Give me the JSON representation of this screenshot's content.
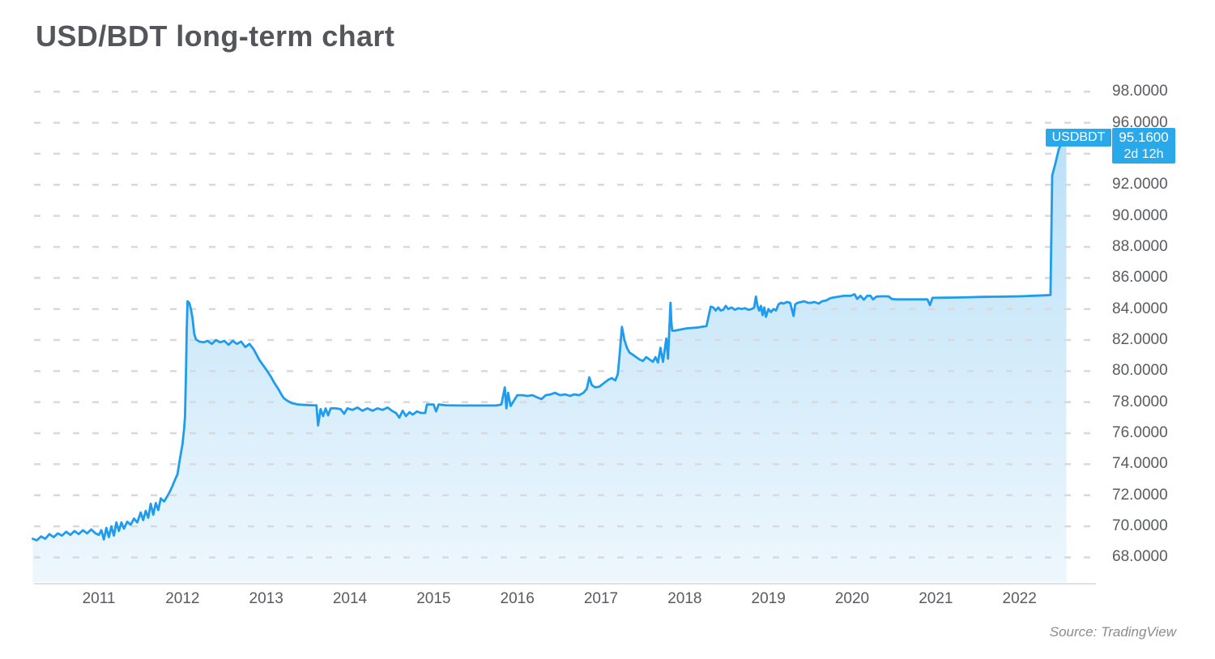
{
  "header": {
    "title": "USD/BDT long-term chart"
  },
  "footer": {
    "source": "Source: TradingView"
  },
  "price_label": {
    "symbol": "USDBDT",
    "price": "95.1600",
    "countdown": "2d 12h"
  },
  "chart_data": {
    "type": "area",
    "title": "USD/BDT long-term chart",
    "series_name": "USDBDT",
    "xlabel": "",
    "ylabel": "",
    "x_tick_labels": [
      "2011",
      "2012",
      "2013",
      "2014",
      "2015",
      "2016",
      "2017",
      "2018",
      "2019",
      "2020",
      "2021",
      "2022"
    ],
    "y_tick_labels": [
      "98.0000",
      "96.0000",
      "94.0000",
      "92.0000",
      "90.0000",
      "88.0000",
      "86.0000",
      "84.0000",
      "82.0000",
      "80.0000",
      "78.0000",
      "76.0000",
      "74.0000",
      "72.0000",
      "70.0000",
      "68.0000"
    ],
    "ylim": [
      66.4,
      99.6
    ],
    "xlim_years": [
      2010.2,
      2022.75
    ],
    "grid": "dashed-horizontal",
    "legend_position": "none",
    "last_price": 95.16,
    "colors": {
      "line": "#1f9ced",
      "fill_top": "#b9e0f8",
      "fill_bottom": "#eef7fd",
      "badge": "#29a9e9",
      "grid": "#d9d9db",
      "axis": "#dfe1e4",
      "label_text": "#595b60"
    },
    "points": [
      [
        2010.21,
        69.2
      ],
      [
        2010.26,
        69.1
      ],
      [
        2010.31,
        69.35
      ],
      [
        2010.36,
        69.2
      ],
      [
        2010.41,
        69.5
      ],
      [
        2010.46,
        69.3
      ],
      [
        2010.51,
        69.55
      ],
      [
        2010.56,
        69.4
      ],
      [
        2010.61,
        69.65
      ],
      [
        2010.66,
        69.45
      ],
      [
        2010.71,
        69.7
      ],
      [
        2010.76,
        69.5
      ],
      [
        2010.81,
        69.75
      ],
      [
        2010.86,
        69.55
      ],
      [
        2010.91,
        69.8
      ],
      [
        2010.96,
        69.55
      ],
      [
        2011.0,
        69.45
      ],
      [
        2011.03,
        69.75
      ],
      [
        2011.06,
        69.15
      ],
      [
        2011.09,
        69.9
      ],
      [
        2011.12,
        69.3
      ],
      [
        2011.15,
        70.0
      ],
      [
        2011.18,
        69.4
      ],
      [
        2011.21,
        70.25
      ],
      [
        2011.24,
        69.7
      ],
      [
        2011.27,
        70.25
      ],
      [
        2011.3,
        69.85
      ],
      [
        2011.34,
        70.3
      ],
      [
        2011.38,
        70.1
      ],
      [
        2011.42,
        70.5
      ],
      [
        2011.46,
        70.25
      ],
      [
        2011.5,
        70.9
      ],
      [
        2011.53,
        70.4
      ],
      [
        2011.56,
        71.0
      ],
      [
        2011.59,
        70.55
      ],
      [
        2011.62,
        71.45
      ],
      [
        2011.65,
        70.75
      ],
      [
        2011.68,
        71.5
      ],
      [
        2011.71,
        71.05
      ],
      [
        2011.74,
        71.8
      ],
      [
        2011.78,
        71.6
      ],
      [
        2011.82,
        71.95
      ],
      [
        2011.85,
        72.25
      ],
      [
        2011.88,
        72.6
      ],
      [
        2011.91,
        73.0
      ],
      [
        2011.94,
        73.35
      ],
      [
        2011.96,
        74.05
      ],
      [
        2011.98,
        74.7
      ],
      [
        2012.0,
        75.3
      ],
      [
        2012.02,
        76.35
      ],
      [
        2012.03,
        77.1
      ],
      [
        2012.04,
        79.6
      ],
      [
        2012.05,
        82.6
      ],
      [
        2012.06,
        84.5
      ],
      [
        2012.08,
        84.4
      ],
      [
        2012.1,
        84.0
      ],
      [
        2012.12,
        83.4
      ],
      [
        2012.14,
        82.4
      ],
      [
        2012.16,
        82.05
      ],
      [
        2012.2,
        81.9
      ],
      [
        2012.25,
        81.85
      ],
      [
        2012.3,
        81.95
      ],
      [
        2012.35,
        81.75
      ],
      [
        2012.4,
        82.0
      ],
      [
        2012.45,
        81.85
      ],
      [
        2012.5,
        81.95
      ],
      [
        2012.55,
        81.7
      ],
      [
        2012.6,
        81.95
      ],
      [
        2012.65,
        81.75
      ],
      [
        2012.7,
        81.9
      ],
      [
        2012.75,
        81.55
      ],
      [
        2012.8,
        81.75
      ],
      [
        2012.85,
        81.4
      ],
      [
        2012.88,
        81.1
      ],
      [
        2012.92,
        80.7
      ],
      [
        2012.96,
        80.4
      ],
      [
        2013.0,
        80.1
      ],
      [
        2013.03,
        79.85
      ],
      [
        2013.06,
        79.6
      ],
      [
        2013.09,
        79.3
      ],
      [
        2013.12,
        79.05
      ],
      [
        2013.15,
        78.8
      ],
      [
        2013.18,
        78.5
      ],
      [
        2013.21,
        78.25
      ],
      [
        2013.25,
        78.1
      ],
      [
        2013.3,
        77.95
      ],
      [
        2013.38,
        77.85
      ],
      [
        2013.47,
        77.82
      ],
      [
        2013.55,
        77.8
      ],
      [
        2013.6,
        77.8
      ],
      [
        2013.62,
        76.5
      ],
      [
        2013.65,
        77.55
      ],
      [
        2013.68,
        77.1
      ],
      [
        2013.71,
        77.6
      ],
      [
        2013.74,
        77.15
      ],
      [
        2013.77,
        77.6
      ],
      [
        2013.83,
        77.6
      ],
      [
        2013.89,
        77.55
      ],
      [
        2013.93,
        77.25
      ],
      [
        2013.97,
        77.6
      ],
      [
        2014.03,
        77.5
      ],
      [
        2014.09,
        77.65
      ],
      [
        2014.15,
        77.45
      ],
      [
        2014.21,
        77.6
      ],
      [
        2014.27,
        77.45
      ],
      [
        2014.33,
        77.6
      ],
      [
        2014.39,
        77.5
      ],
      [
        2014.45,
        77.65
      ],
      [
        2014.5,
        77.45
      ],
      [
        2014.55,
        77.3
      ],
      [
        2014.59,
        77.0
      ],
      [
        2014.63,
        77.45
      ],
      [
        2014.67,
        77.1
      ],
      [
        2014.71,
        77.35
      ],
      [
        2014.75,
        77.2
      ],
      [
        2014.8,
        77.4
      ],
      [
        2014.85,
        77.3
      ],
      [
        2014.9,
        77.3
      ],
      [
        2014.92,
        77.85
      ],
      [
        2014.97,
        77.85
      ],
      [
        2015.0,
        77.85
      ],
      [
        2015.03,
        77.4
      ],
      [
        2015.06,
        77.85
      ],
      [
        2015.15,
        77.8
      ],
      [
        2015.3,
        77.78
      ],
      [
        2015.45,
        77.78
      ],
      [
        2015.6,
        77.78
      ],
      [
        2015.75,
        77.78
      ],
      [
        2015.81,
        77.85
      ],
      [
        2015.85,
        78.95
      ],
      [
        2015.87,
        77.6
      ],
      [
        2015.89,
        78.6
      ],
      [
        2015.92,
        77.75
      ],
      [
        2015.96,
        78.1
      ],
      [
        2016.0,
        78.45
      ],
      [
        2016.06,
        78.45
      ],
      [
        2016.12,
        78.4
      ],
      [
        2016.18,
        78.45
      ],
      [
        2016.24,
        78.3
      ],
      [
        2016.29,
        78.2
      ],
      [
        2016.34,
        78.45
      ],
      [
        2016.4,
        78.5
      ],
      [
        2016.45,
        78.6
      ],
      [
        2016.51,
        78.45
      ],
      [
        2016.57,
        78.5
      ],
      [
        2016.63,
        78.4
      ],
      [
        2016.68,
        78.5
      ],
      [
        2016.74,
        78.45
      ],
      [
        2016.79,
        78.6
      ],
      [
        2016.83,
        78.85
      ],
      [
        2016.86,
        79.6
      ],
      [
        2016.89,
        79.1
      ],
      [
        2016.93,
        78.95
      ],
      [
        2016.98,
        79.0
      ],
      [
        2017.04,
        79.25
      ],
      [
        2017.09,
        79.45
      ],
      [
        2017.13,
        79.55
      ],
      [
        2017.17,
        79.4
      ],
      [
        2017.2,
        79.8
      ],
      [
        2017.22,
        80.9
      ],
      [
        2017.25,
        82.85
      ],
      [
        2017.28,
        82.0
      ],
      [
        2017.31,
        81.5
      ],
      [
        2017.34,
        81.2
      ],
      [
        2017.38,
        81.05
      ],
      [
        2017.42,
        80.9
      ],
      [
        2017.46,
        80.75
      ],
      [
        2017.5,
        80.65
      ],
      [
        2017.54,
        80.9
      ],
      [
        2017.58,
        80.75
      ],
      [
        2017.62,
        80.6
      ],
      [
        2017.65,
        80.9
      ],
      [
        2017.68,
        80.55
      ],
      [
        2017.71,
        81.5
      ],
      [
        2017.74,
        80.6
      ],
      [
        2017.78,
        82.1
      ],
      [
        2017.8,
        80.8
      ],
      [
        2017.83,
        84.4
      ],
      [
        2017.84,
        83.2
      ],
      [
        2017.85,
        82.6
      ],
      [
        2017.88,
        82.6
      ],
      [
        2017.92,
        82.65
      ],
      [
        2017.97,
        82.7
      ],
      [
        2018.02,
        82.75
      ],
      [
        2018.08,
        82.78
      ],
      [
        2018.14,
        82.8
      ],
      [
        2018.2,
        82.85
      ],
      [
        2018.26,
        82.9
      ],
      [
        2018.31,
        84.15
      ],
      [
        2018.34,
        84.1
      ],
      [
        2018.37,
        83.9
      ],
      [
        2018.4,
        84.1
      ],
      [
        2018.43,
        83.9
      ],
      [
        2018.46,
        83.95
      ],
      [
        2018.49,
        84.2
      ],
      [
        2018.52,
        84.0
      ],
      [
        2018.56,
        84.1
      ],
      [
        2018.6,
        83.95
      ],
      [
        2018.64,
        84.05
      ],
      [
        2018.68,
        84.0
      ],
      [
        2018.72,
        84.05
      ],
      [
        2018.76,
        83.95
      ],
      [
        2018.8,
        84.0
      ],
      [
        2018.83,
        84.1
      ],
      [
        2018.85,
        84.8
      ],
      [
        2018.87,
        84.2
      ],
      [
        2018.89,
        83.9
      ],
      [
        2018.91,
        84.2
      ],
      [
        2018.93,
        83.6
      ],
      [
        2018.95,
        84.1
      ],
      [
        2018.97,
        83.5
      ],
      [
        2019.0,
        84.0
      ],
      [
        2019.03,
        83.8
      ],
      [
        2019.06,
        84.0
      ],
      [
        2019.09,
        83.9
      ],
      [
        2019.12,
        84.3
      ],
      [
        2019.15,
        84.4
      ],
      [
        2019.18,
        84.35
      ],
      [
        2019.22,
        84.45
      ],
      [
        2019.26,
        84.4
      ],
      [
        2019.3,
        83.55
      ],
      [
        2019.32,
        84.3
      ],
      [
        2019.35,
        84.4
      ],
      [
        2019.39,
        84.45
      ],
      [
        2019.43,
        84.5
      ],
      [
        2019.47,
        84.4
      ],
      [
        2019.51,
        84.4
      ],
      [
        2019.55,
        84.45
      ],
      [
        2019.6,
        84.35
      ],
      [
        2019.64,
        84.5
      ],
      [
        2019.69,
        84.55
      ],
      [
        2019.74,
        84.7
      ],
      [
        2019.79,
        84.75
      ],
      [
        2019.85,
        84.8
      ],
      [
        2019.9,
        84.85
      ],
      [
        2019.98,
        84.85
      ],
      [
        2020.03,
        84.95
      ],
      [
        2020.06,
        84.65
      ],
      [
        2020.1,
        84.85
      ],
      [
        2020.14,
        84.6
      ],
      [
        2020.18,
        84.85
      ],
      [
        2020.22,
        84.85
      ],
      [
        2020.25,
        84.62
      ],
      [
        2020.29,
        84.8
      ],
      [
        2020.35,
        84.82
      ],
      [
        2020.41,
        84.82
      ],
      [
        2020.44,
        84.8
      ],
      [
        2020.47,
        84.65
      ],
      [
        2020.52,
        84.62
      ],
      [
        2020.62,
        84.62
      ],
      [
        2020.72,
        84.62
      ],
      [
        2020.82,
        84.62
      ],
      [
        2020.9,
        84.62
      ],
      [
        2020.93,
        84.25
      ],
      [
        2020.96,
        84.72
      ],
      [
        2021.1,
        84.73
      ],
      [
        2021.25,
        84.74
      ],
      [
        2021.4,
        84.76
      ],
      [
        2021.55,
        84.78
      ],
      [
        2021.7,
        84.79
      ],
      [
        2021.85,
        84.8
      ],
      [
        2022.0,
        84.82
      ],
      [
        2022.1,
        84.84
      ],
      [
        2022.2,
        84.86
      ],
      [
        2022.3,
        84.88
      ],
      [
        2022.37,
        84.9
      ],
      [
        2022.39,
        92.6
      ],
      [
        2022.42,
        93.2
      ],
      [
        2022.47,
        94.3
      ],
      [
        2022.52,
        94.9
      ],
      [
        2022.56,
        95.16
      ]
    ]
  }
}
